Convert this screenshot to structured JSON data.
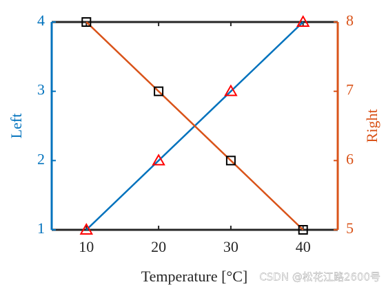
{
  "chart_data": {
    "type": "line",
    "xlabel": "Temperature [°C]",
    "ylabel": "Left",
    "y2label": "Right",
    "x": [
      10,
      20,
      30,
      40
    ],
    "xlim": [
      5.2,
      44.8
    ],
    "xticks": [
      10,
      20,
      30,
      40
    ],
    "ylim": [
      1,
      4
    ],
    "yticks": [
      1,
      2,
      3,
      4
    ],
    "ycolor": "#0072bd",
    "y2lim": [
      5,
      8
    ],
    "y2ticks": [
      5,
      6,
      7,
      8
    ],
    "y2color": "#d95319",
    "series": [
      {
        "color": "#0072bd",
        "marker": "triangle",
        "marker_color": "#ff0000",
        "values": [
          1,
          2,
          3,
          4
        ]
      },
      {
        "color": "#d95319",
        "marker": "square",
        "marker_color": "#000000",
        "axis": "y2",
        "values": [
          8,
          7,
          6,
          5
        ]
      }
    ],
    "watermark": "CSDN @松花江路2600号"
  }
}
